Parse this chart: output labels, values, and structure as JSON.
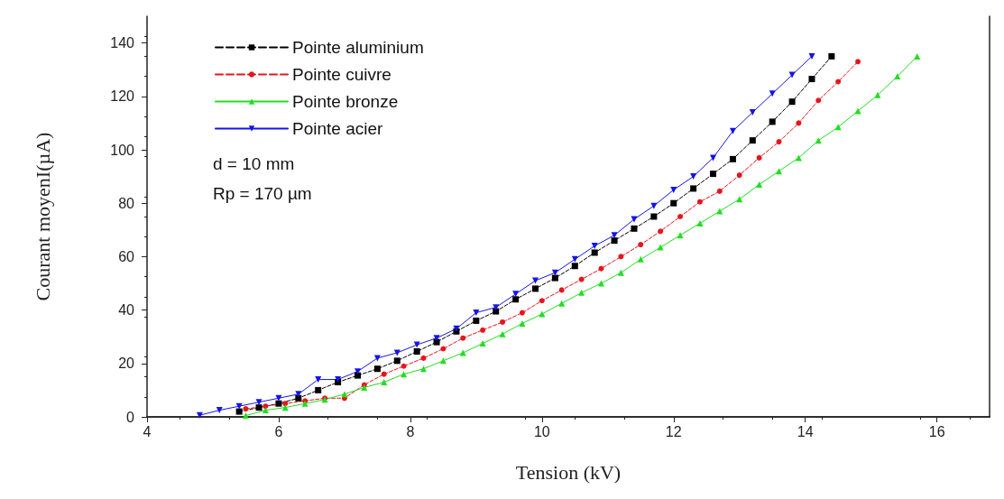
{
  "chart_data": {
    "type": "line",
    "xlabel": "Tension (kV)",
    "ylabel": "Courant moyenI(µA)",
    "xlim": [
      4,
      16.8
    ],
    "ylim": [
      0,
      150
    ],
    "xticks": [
      4,
      6,
      8,
      10,
      12,
      14,
      16
    ],
    "yticks": [
      0,
      20,
      40,
      60,
      80,
      100,
      120,
      140
    ],
    "grid": false,
    "legend": "top left",
    "annotations": [
      "d = 10 mm",
      "Rp = 170 µm"
    ],
    "series": [
      {
        "name": "Pointe aluminium",
        "color": "#000000",
        "marker": "square",
        "line_style": "dashed",
        "x": [
          5.4,
          5.7,
          6.0,
          6.3,
          6.6,
          6.9,
          7.2,
          7.5,
          7.8,
          8.1,
          8.4,
          8.7,
          9.0,
          9.3,
          9.6,
          9.9,
          10.2,
          10.5,
          10.8,
          11.1,
          11.4,
          11.7,
          12.0,
          12.3,
          12.6,
          12.9,
          13.2,
          13.5,
          13.8,
          14.1,
          14.4
        ],
        "values": [
          2,
          3.5,
          5,
          7,
          10,
          13,
          15.5,
          18,
          21,
          24.5,
          28,
          32,
          36,
          39.5,
          44,
          48,
          52,
          56.5,
          61.5,
          66,
          70.5,
          75,
          80,
          85.5,
          91,
          96.5,
          103.5,
          110.5,
          118,
          126.5,
          135
        ]
      },
      {
        "name": "Pointe cuivre",
        "color": "#e8141c",
        "marker": "circle",
        "line_style": "dashed",
        "x": [
          5.5,
          5.8,
          6.1,
          6.4,
          6.7,
          7.0,
          7.3,
          7.6,
          7.9,
          8.2,
          8.5,
          8.8,
          9.1,
          9.4,
          9.7,
          10.0,
          10.3,
          10.6,
          10.9,
          11.2,
          11.5,
          11.8,
          12.1,
          12.4,
          12.7,
          13.0,
          13.3,
          13.6,
          13.9,
          14.2,
          14.5,
          14.8
        ],
        "values": [
          3,
          4,
          5,
          6,
          7,
          7,
          12,
          16,
          19,
          22,
          25.5,
          29.5,
          32.5,
          35.5,
          39,
          43.5,
          47.5,
          51.5,
          55.5,
          60,
          64.5,
          69.5,
          75,
          80.5,
          84.5,
          90.5,
          97,
          103,
          110,
          118.5,
          125.5,
          133
        ]
      },
      {
        "name": "Pointe bronze",
        "color": "#22dd22",
        "marker": "triangle",
        "line_style": "solid",
        "x": [
          5.5,
          5.8,
          6.1,
          6.4,
          6.7,
          7.0,
          7.3,
          7.6,
          7.9,
          8.2,
          8.5,
          8.8,
          9.1,
          9.4,
          9.7,
          10.0,
          10.3,
          10.6,
          10.9,
          11.2,
          11.5,
          11.8,
          12.1,
          12.4,
          12.7,
          13.0,
          13.3,
          13.6,
          13.9,
          14.2,
          14.5,
          14.8,
          15.1,
          15.4,
          15.7
        ],
        "values": [
          0.5,
          2.5,
          3.5,
          5,
          6.5,
          8.5,
          11,
          13,
          16,
          18,
          21,
          24,
          27.5,
          31,
          35,
          38.5,
          42.5,
          46.5,
          50,
          54,
          59,
          63.5,
          68,
          72.5,
          77,
          81.5,
          87,
          92,
          97,
          103.5,
          108.5,
          114.5,
          120.5,
          127.5,
          135
        ]
      },
      {
        "name": "Pointe acier",
        "color": "#1414e6",
        "marker": "triangle-down",
        "line_style": "solid",
        "x": [
          4.8,
          5.1,
          5.4,
          5.7,
          6.0,
          6.3,
          6.6,
          6.9,
          7.2,
          7.5,
          7.8,
          8.1,
          8.4,
          8.7,
          9.0,
          9.3,
          9.6,
          9.9,
          10.2,
          10.5,
          10.8,
          11.1,
          11.4,
          11.7,
          12.0,
          12.3,
          12.6,
          12.9,
          13.2,
          13.5,
          13.8,
          14.1
        ],
        "values": [
          0.6,
          2.5,
          4,
          5.5,
          7,
          8.5,
          14,
          14,
          17,
          22,
          24,
          27,
          29.5,
          33,
          39,
          41,
          46,
          51,
          54,
          59,
          64,
          68,
          74,
          79,
          85,
          90,
          97,
          107,
          114,
          121,
          128,
          135
        ]
      }
    ]
  }
}
